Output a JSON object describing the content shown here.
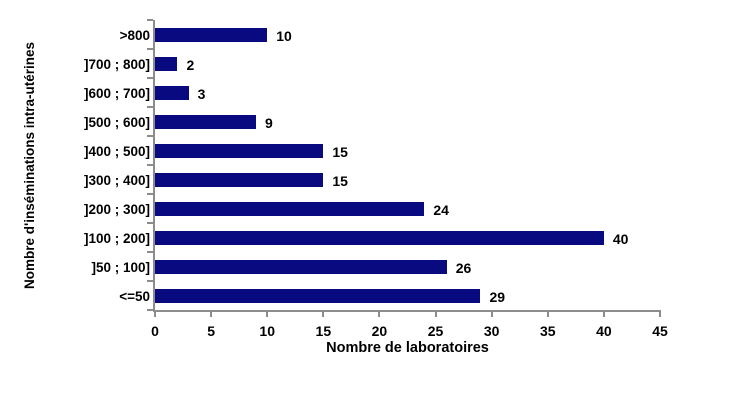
{
  "chart_data": {
    "type": "bar",
    "orientation": "horizontal",
    "title": "",
    "xlabel": "Nombre de laboratoires",
    "ylabel": "Nombre d'inséminations intra-utérines",
    "categories": [
      ">800",
      "]700 ; 800]",
      "]600 ; 700]",
      "]500 ; 600]",
      "]400 ; 500]",
      "]300 ; 400]",
      "]200 ; 300]",
      "]100 ; 200]",
      "]50 ; 100]",
      "<=50"
    ],
    "values": [
      10,
      2,
      3,
      9,
      15,
      15,
      24,
      40,
      26,
      29
    ],
    "xlim": [
      0,
      45
    ],
    "xticks": [
      0,
      5,
      10,
      15,
      20,
      25,
      30,
      35,
      40,
      45
    ],
    "grid": false,
    "legend": false,
    "data_labels": true,
    "colors": {
      "bar": "#0a0a80",
      "axis": "#8c8c8c",
      "text": "#000000",
      "background": "#ffffff"
    }
  }
}
